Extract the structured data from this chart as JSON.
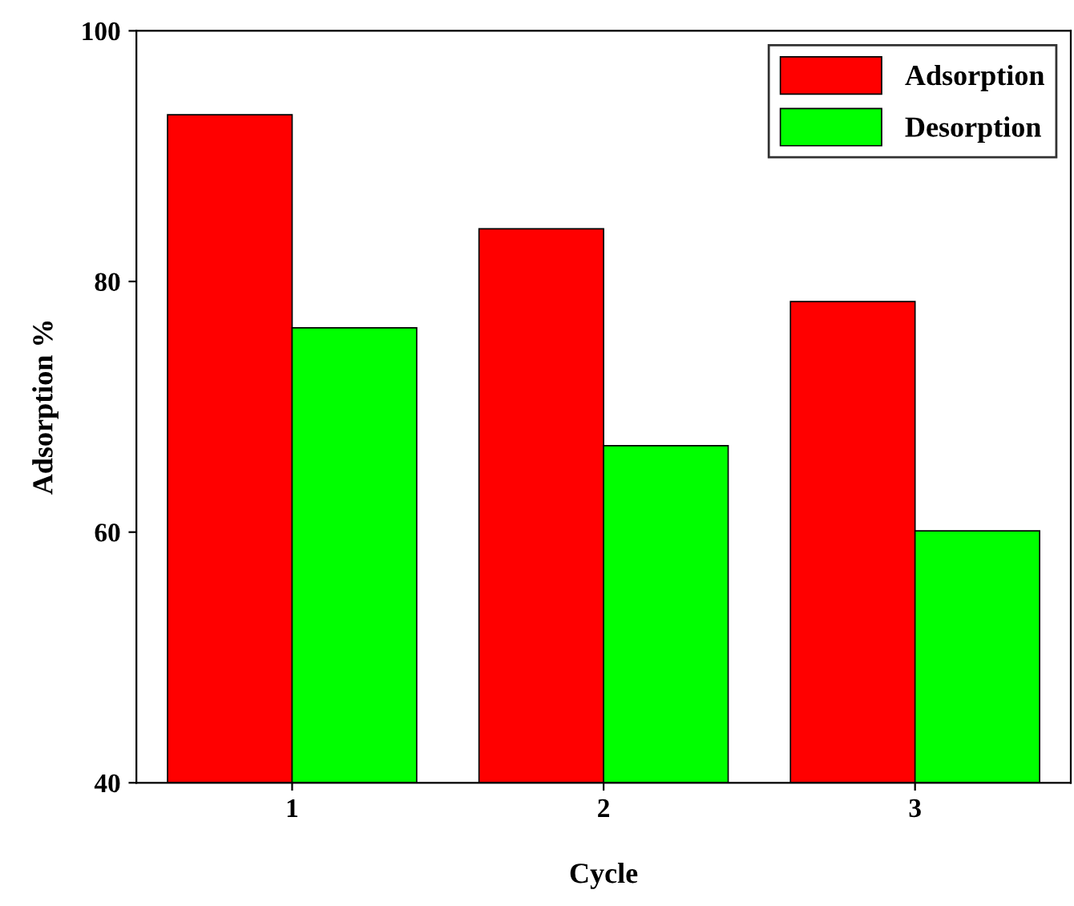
{
  "chart_data": {
    "type": "bar",
    "xlabel": "Cycle",
    "ylabel": "Adsorption %",
    "categories": [
      "1",
      "2",
      "3"
    ],
    "series": [
      {
        "name": "Adsorption",
        "color": "#ff0000",
        "values": [
          93.3,
          84.2,
          78.4
        ]
      },
      {
        "name": "Desorption",
        "color": "#00ff00",
        "values": [
          76.3,
          66.9,
          60.1
        ]
      }
    ],
    "ylim": [
      40,
      100
    ],
    "yticks": [
      40,
      60,
      80,
      100
    ],
    "grid": false,
    "legend": "top right"
  }
}
